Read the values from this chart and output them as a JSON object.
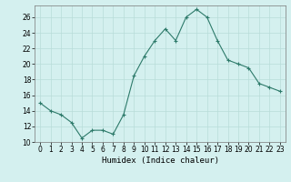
{
  "x": [
    0,
    1,
    2,
    3,
    4,
    5,
    6,
    7,
    8,
    9,
    10,
    11,
    12,
    13,
    14,
    15,
    16,
    17,
    18,
    19,
    20,
    21,
    22,
    23
  ],
  "y": [
    15,
    14,
    13.5,
    12.5,
    10.5,
    11.5,
    11.5,
    11,
    13.5,
    18.5,
    21,
    23,
    24.5,
    23,
    26,
    27,
    26,
    23,
    20.5,
    20,
    19.5,
    17.5,
    17,
    16.5
  ],
  "xlabel": "Humidex (Indice chaleur)",
  "xlim": [
    -0.5,
    23.5
  ],
  "ylim": [
    10,
    27.5
  ],
  "yticks": [
    10,
    12,
    14,
    16,
    18,
    20,
    22,
    24,
    26
  ],
  "xticks": [
    0,
    1,
    2,
    3,
    4,
    5,
    6,
    7,
    8,
    9,
    10,
    11,
    12,
    13,
    14,
    15,
    16,
    17,
    18,
    19,
    20,
    21,
    22,
    23
  ],
  "line_color": "#2d7a6a",
  "marker": "+",
  "bg_color": "#d4f0ef",
  "grid_color": "#b8dcd9",
  "label_fontsize": 6.5,
  "tick_fontsize": 5.5
}
